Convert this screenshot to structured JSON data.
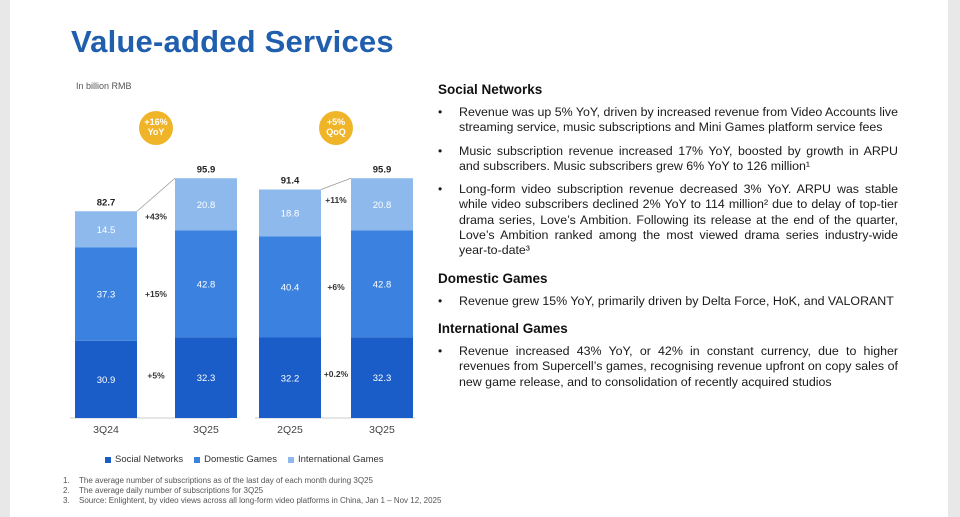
{
  "title": "Value-added Services",
  "unit_note": "In billion RMB",
  "chart_data": {
    "type": "bar",
    "stacked": true,
    "categories": [
      "3Q24",
      "3Q25",
      "2Q25",
      "3Q25"
    ],
    "series": [
      {
        "name": "Social Networks",
        "values": [
          30.9,
          32.3,
          32.2,
          32.3
        ]
      },
      {
        "name": "Domestic Games",
        "values": [
          37.3,
          42.8,
          40.4,
          42.8
        ]
      },
      {
        "name": "International Games",
        "values": [
          14.5,
          20.8,
          18.8,
          20.8
        ]
      }
    ],
    "totals": [
      82.7,
      95.9,
      91.4,
      95.9
    ],
    "groups": [
      {
        "badge": [
          "+16%",
          "YoY"
        ],
        "changes": [
          "+43%",
          "+15%",
          "+5%"
        ]
      },
      {
        "badge": [
          "+5%",
          "QoQ"
        ],
        "changes": [
          "+11%",
          "+6%",
          "+0.2%"
        ]
      }
    ],
    "ylim": [
      0,
      100
    ],
    "colors": {
      "Social Networks": "#1a5cc8",
      "Domestic Games": "#3b82e0",
      "International Games": "#8db9ec",
      "badge": "#f0b429",
      "axis": "#cccccc"
    }
  },
  "legend": [
    "Social Networks",
    "Domestic Games",
    "International Games"
  ],
  "sections": [
    {
      "title": "Social Networks",
      "bullets": [
        "Revenue was up 5% YoY, driven by increased revenue from Video Accounts live streaming service, music subscriptions and Mini Games platform service fees",
        "Music subscription revenue increased 17% YoY, boosted by growth in ARPU and subscribers. Music subscribers grew 6% YoY to 126 million¹",
        "Long-form video subscription revenue decreased 3% YoY. ARPU was stable while video subscribers declined 2% YoY to 114 million² due to delay of top-tier drama series, Love’s Ambition. Following its release at the end of the quarter, Love’s Ambition ranked among the most viewed drama series industry-wide year-to-date³"
      ]
    },
    {
      "title": "Domestic Games",
      "bullets": [
        "Revenue grew 15% YoY, primarily driven by Delta Force, HoK, and VALORANT"
      ]
    },
    {
      "title": "International Games",
      "bullets": [
        "Revenue increased 43% YoY, or 42% in constant currency, due to higher revenues from Supercell’s games, recognising revenue upfront on copy sales of new game release, and to consolidation of recently acquired studios"
      ]
    }
  ],
  "footnotes": [
    {
      "num": "1.",
      "text": "The average number of subscriptions as of the last day of each month during 3Q25"
    },
    {
      "num": "2.",
      "text": "The average daily number of subscriptions for 3Q25"
    },
    {
      "num": "3.",
      "text": "Source: Enlightent, by video views across all long-form video platforms in China, Jan 1 – Nov 12, 2025"
    }
  ]
}
